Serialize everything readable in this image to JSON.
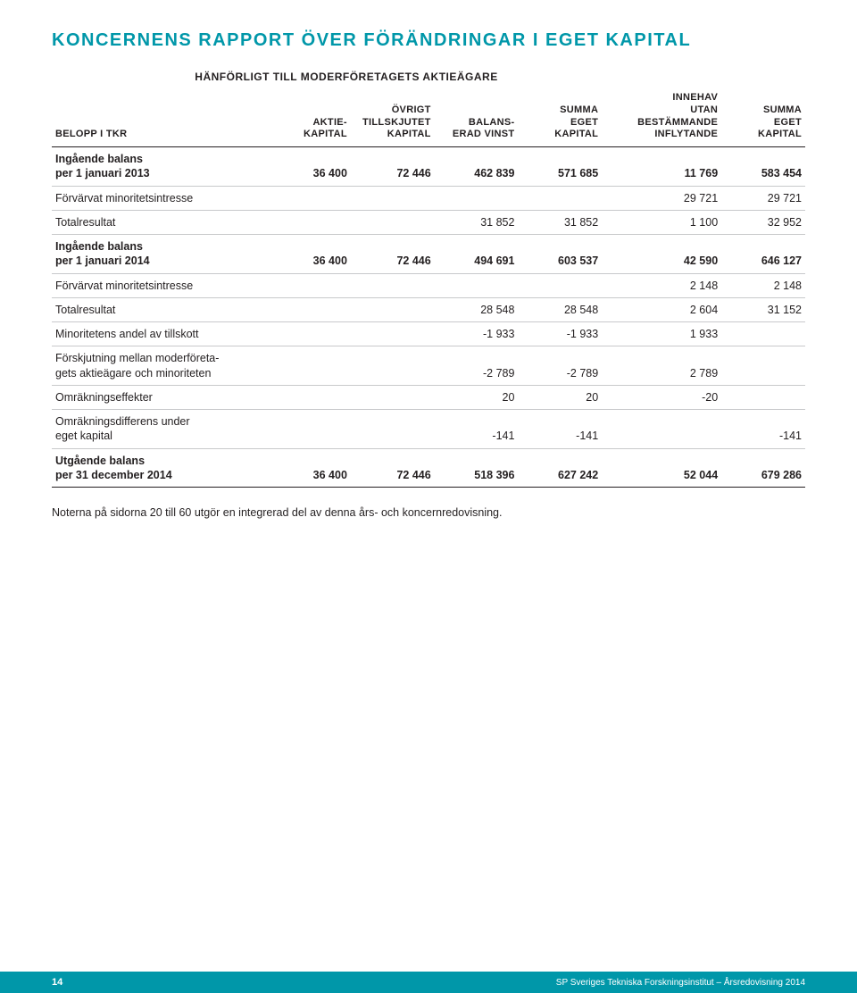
{
  "title": "KONCERNENS RAPPORT ÖVER FÖRÄNDRINGAR I EGET KAPITAL",
  "spanner": "HÄNFÖRLIGT TILL MODERFÖRETAGETS AKTIEÄGARE",
  "headers": {
    "label": "BELOPP I TKR",
    "c1": "AKTIE-\nKAPITAL",
    "c2": "ÖVRIGT\nTILLSKJUTET\nKAPITAL",
    "c3": "BALANS-\nERAD VINST",
    "c4": "SUMMA\nEGET\nKAPITAL",
    "c5": "INNEHAV\nUTAN\nBESTÄMMANDE\nINFLYTANDE",
    "c6": "SUMMA\nEGET\nKAPITAL"
  },
  "rows": [
    {
      "bold": true,
      "label": "Ingående balans\nper 1 januari 2013",
      "c1": "36 400",
      "c2": "72 446",
      "c3": "462 839",
      "c4": "571 685",
      "c5": "11 769",
      "c6": "583 454"
    },
    {
      "bold": false,
      "label": "Förvärvat minoritetsintresse",
      "c1": "",
      "c2": "",
      "c3": "",
      "c4": "",
      "c5": "29 721",
      "c6": "29 721"
    },
    {
      "bold": false,
      "label": "Totalresultat",
      "c1": "",
      "c2": "",
      "c3": "31 852",
      "c4": "31 852",
      "c5": "1 100",
      "c6": "32 952"
    },
    {
      "bold": true,
      "label": "Ingående balans\nper 1 januari 2014",
      "c1": "36 400",
      "c2": "72 446",
      "c3": "494 691",
      "c4": "603 537",
      "c5": "42 590",
      "c6": "646 127"
    },
    {
      "bold": false,
      "label": "Förvärvat minoritetsintresse",
      "c1": "",
      "c2": "",
      "c3": "",
      "c4": "",
      "c5": "2 148",
      "c6": "2 148"
    },
    {
      "bold": false,
      "label": "Totalresultat",
      "c1": "",
      "c2": "",
      "c3": "28 548",
      "c4": "28 548",
      "c5": "2 604",
      "c6": "31 152"
    },
    {
      "bold": false,
      "label": "Minoritetens andel av tillskott",
      "c1": "",
      "c2": "",
      "c3": "-1 933",
      "c4": "-1 933",
      "c5": "1 933",
      "c6": ""
    },
    {
      "bold": false,
      "label": "Förskjutning mellan moderföreta-\ngets aktieägare och minoriteten",
      "c1": "",
      "c2": "",
      "c3": "-2 789",
      "c4": "-2 789",
      "c5": "2 789",
      "c6": ""
    },
    {
      "bold": false,
      "label": "Omräkningseffekter",
      "c1": "",
      "c2": "",
      "c3": "20",
      "c4": "20",
      "c5": "-20",
      "c6": ""
    },
    {
      "bold": false,
      "label": "Omräkningsdifferens under\neget kapital",
      "c1": "",
      "c2": "",
      "c3": "-141",
      "c4": "-141",
      "c5": "",
      "c6": "-141"
    },
    {
      "bold": true,
      "label": "Utgående balans\nper 31 december 2014",
      "c1": "36 400",
      "c2": "72 446",
      "c3": "518 396",
      "c4": "627 242",
      "c5": "52 044",
      "c6": "679 286"
    }
  ],
  "note": "Noterna på sidorna 20 till 60 utgör en integrerad del av denna års- och koncernredovisning.",
  "footer": {
    "page": "14",
    "text": "SP Sveriges Tekniska Forskningsinstitut – Årsredovisning 2014"
  },
  "colors": {
    "accent": "#0097a9",
    "text": "#231f20",
    "rule": "#c8c9cb",
    "background": "#ffffff"
  }
}
